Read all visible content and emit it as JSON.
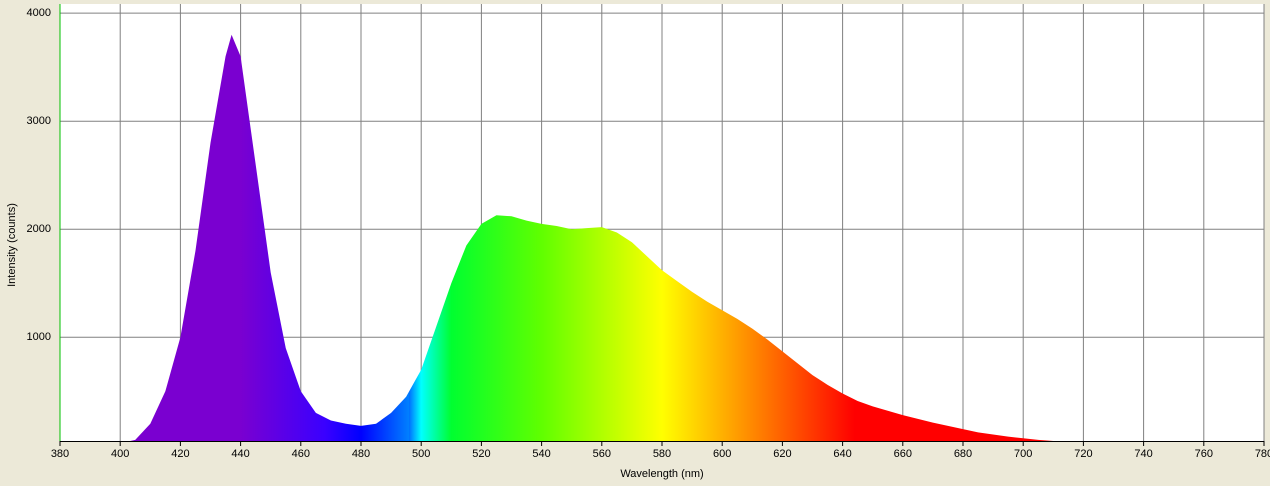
{
  "chart_data": {
    "type": "area",
    "xlabel": "Wavelength (nm)",
    "ylabel": "Intensity (counts)",
    "x": [
      400,
      405,
      410,
      415,
      420,
      425,
      430,
      435,
      437,
      440,
      445,
      450,
      455,
      460,
      465,
      470,
      475,
      480,
      485,
      490,
      495,
      500,
      505,
      510,
      515,
      520,
      525,
      530,
      535,
      540,
      545,
      550,
      555,
      560,
      565,
      570,
      575,
      580,
      585,
      590,
      595,
      600,
      605,
      610,
      615,
      620,
      625,
      630,
      635,
      640,
      645,
      650,
      655,
      660,
      665,
      670,
      675,
      680,
      685,
      690,
      695,
      700,
      705,
      710,
      715,
      720,
      722
    ],
    "values": [
      20,
      50,
      200,
      500,
      1000,
      1800,
      2800,
      3600,
      3800,
      3600,
      2600,
      1600,
      900,
      500,
      300,
      230,
      200,
      180,
      200,
      300,
      450,
      700,
      1100,
      1500,
      1850,
      2050,
      2130,
      2120,
      2080,
      2050,
      2030,
      2000,
      2010,
      2020,
      1970,
      1880,
      1750,
      1620,
      1520,
      1420,
      1330,
      1250,
      1170,
      1080,
      980,
      870,
      760,
      650,
      560,
      480,
      410,
      360,
      320,
      280,
      245,
      210,
      180,
      150,
      120,
      100,
      80,
      65,
      50,
      40,
      30,
      20,
      10
    ],
    "xlim": [
      380,
      780
    ],
    "ylim": [
      40,
      4085
    ],
    "xticks": [
      380,
      400,
      420,
      440,
      460,
      480,
      500,
      520,
      540,
      560,
      580,
      600,
      620,
      640,
      660,
      680,
      700,
      720,
      740,
      760,
      780
    ],
    "yticks": [
      1000,
      2000,
      3000,
      4000
    ],
    "grid": true
  }
}
